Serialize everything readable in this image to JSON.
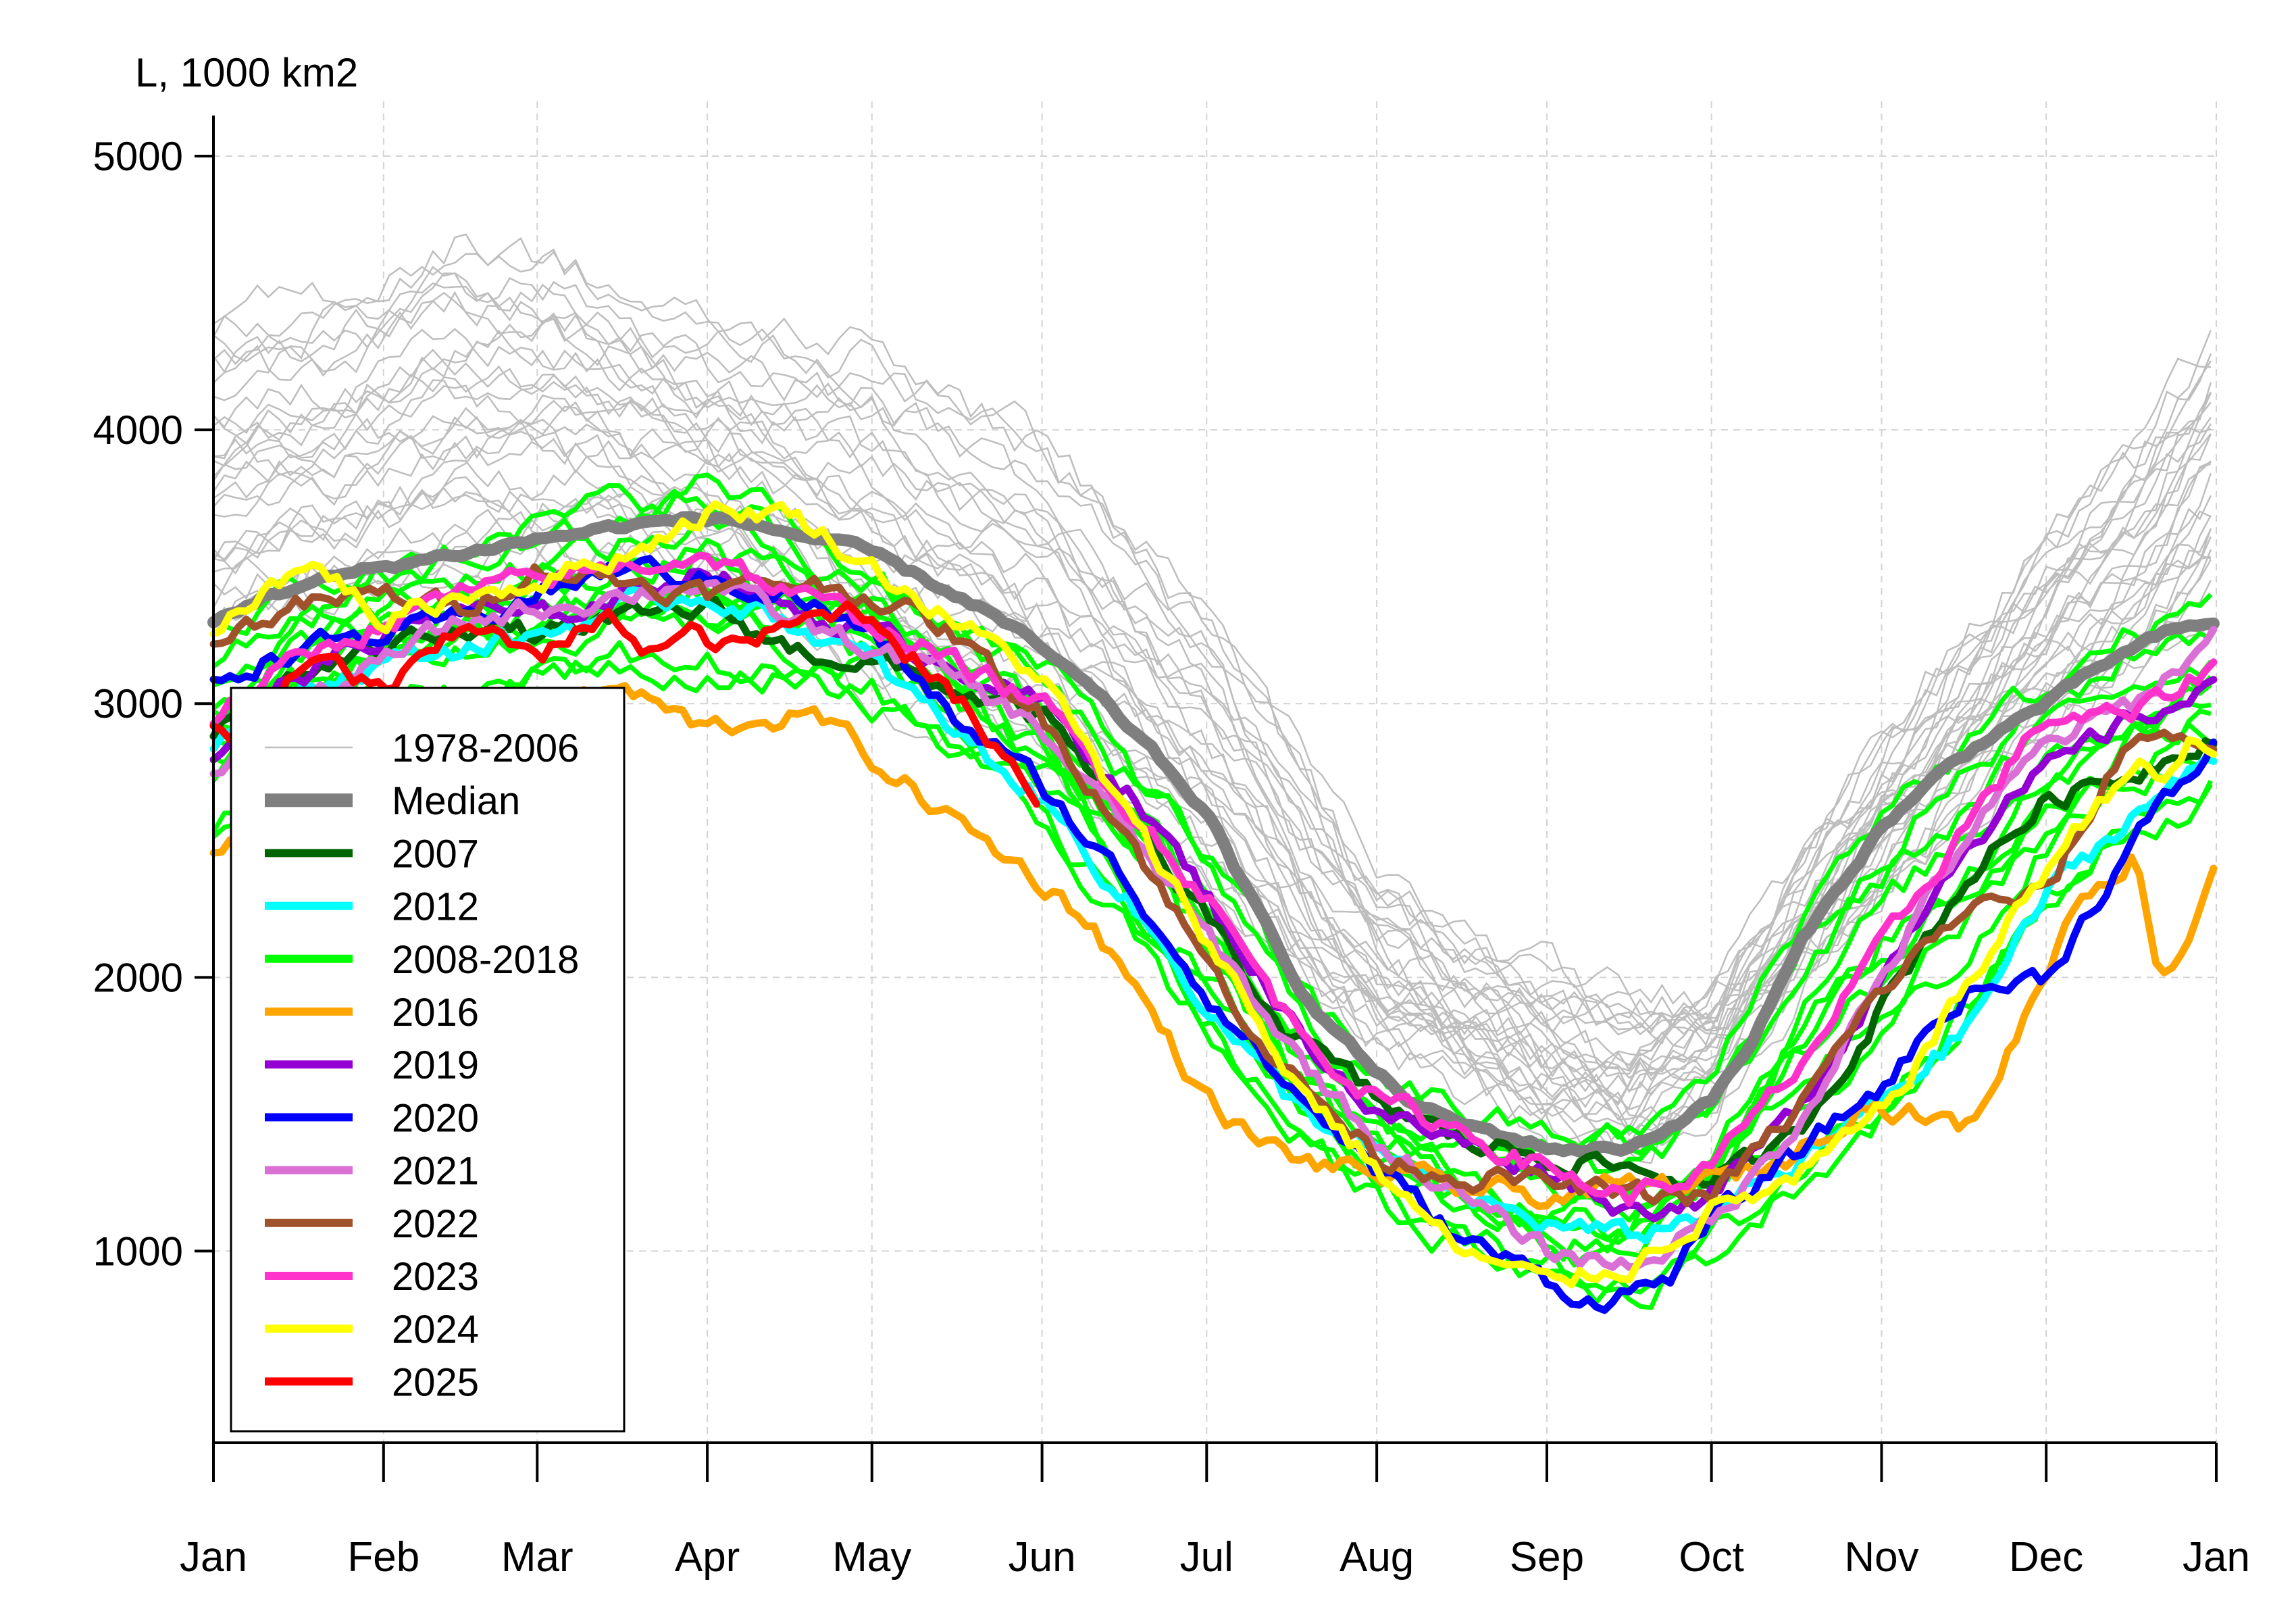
{
  "chart_data": {
    "type": "line",
    "title": "",
    "ylabel": "L, 1000 km2",
    "xlabel": "",
    "ylim": [
      300,
      5200
    ],
    "xlim": [
      0,
      365
    ],
    "grid": true,
    "legend_position": "bottom-left",
    "x_ticks": [
      {
        "label": "Jan",
        "day": 0
      },
      {
        "label": "Feb",
        "day": 31
      },
      {
        "label": "Mar",
        "day": 59
      },
      {
        "label": "Apr",
        "day": 90
      },
      {
        "label": "May",
        "day": 120
      },
      {
        "label": "Jun",
        "day": 151
      },
      {
        "label": "Jul",
        "day": 181
      },
      {
        "label": "Aug",
        "day": 212
      },
      {
        "label": "Sep",
        "day": 243
      },
      {
        "label": "Oct",
        "day": 273
      },
      {
        "label": "Nov",
        "day": 304
      },
      {
        "label": "Dec",
        "day": 334
      },
      {
        "label": "Jan",
        "day": 365
      }
    ],
    "y_ticks": [
      1000,
      2000,
      3000,
      4000,
      5000
    ],
    "legend": [
      {
        "label": "1978-2006",
        "color": "#bebebe",
        "width": "thin"
      },
      {
        "label": "Median",
        "color": "#7f7f7f",
        "width": "thick"
      },
      {
        "label": "2007",
        "color": "#006400",
        "width": "bold"
      },
      {
        "label": "2012",
        "color": "#00ffff",
        "width": "bold"
      },
      {
        "label": "2008-2018",
        "color": "#00ff00",
        "width": "bold"
      },
      {
        "label": "2016",
        "color": "#ffa500",
        "width": "bold"
      },
      {
        "label": "2019",
        "color": "#9400d3",
        "width": "bold"
      },
      {
        "label": "2020",
        "color": "#0000ff",
        "width": "bold"
      },
      {
        "label": "2021",
        "color": "#da70d6",
        "width": "bold"
      },
      {
        "label": "2022",
        "color": "#a0522d",
        "width": "bold"
      },
      {
        "label": "2023",
        "color": "#ff33cc",
        "width": "bold"
      },
      {
        "label": "2024",
        "color": "#ffff00",
        "width": "bold"
      },
      {
        "label": "2025",
        "color": "#ff0000",
        "width": "bold"
      }
    ],
    "envelope_1978_2006": {
      "color": "#bebebe",
      "count": 29,
      "x": [
        0,
        15,
        31,
        45,
        59,
        75,
        90,
        105,
        120,
        135,
        151,
        166,
        181,
        196,
        212,
        227,
        243,
        258,
        273,
        288,
        304,
        319,
        334,
        350,
        365
      ],
      "low": [
        3250,
        3350,
        3400,
        3450,
        3500,
        3500,
        3450,
        3300,
        3000,
        2900,
        2750,
        2550,
        2300,
        2000,
        1750,
        1600,
        1450,
        1380,
        1550,
        1900,
        2300,
        2600,
        2900,
        3100,
        3400
      ],
      "high": [
        4400,
        4450,
        4550,
        4700,
        4650,
        4500,
        4350,
        4350,
        4300,
        4150,
        3950,
        3650,
        3350,
        2850,
        2350,
        2150,
        2000,
        1900,
        1950,
        2400,
        2850,
        3250,
        3600,
        3950,
        4350
      ]
    },
    "series": [
      {
        "name": "Median",
        "color": "#7f7f7f",
        "width": "thick",
        "x": [
          0,
          10,
          20,
          31,
          45,
          59,
          75,
          90,
          100,
          110,
          120,
          130,
          140,
          151,
          160,
          170,
          181,
          190,
          200,
          212,
          220,
          230,
          243,
          250,
          258,
          265,
          273,
          280,
          290,
          304,
          315,
          325,
          334,
          345,
          355,
          365
        ],
        "y": [
          3300,
          3400,
          3450,
          3500,
          3550,
          3600,
          3650,
          3680,
          3650,
          3600,
          3550,
          3450,
          3350,
          3200,
          3050,
          2850,
          2600,
          2250,
          1900,
          1650,
          1520,
          1450,
          1380,
          1370,
          1380,
          1450,
          1550,
          1750,
          2150,
          2550,
          2750,
          2900,
          3000,
          3150,
          3250,
          3300
        ]
      },
      {
        "name": "2007",
        "color": "#006400",
        "width": "bold",
        "x": [
          0,
          15,
          31,
          45,
          59,
          75,
          90,
          105,
          120,
          135,
          151,
          166,
          181,
          196,
          212,
          227,
          243,
          258,
          273,
          288,
          304,
          319,
          334,
          350,
          365
        ],
        "y": [
          2900,
          3100,
          3200,
          3300,
          3250,
          3300,
          3350,
          3200,
          3150,
          3050,
          2950,
          2600,
          2200,
          1800,
          1550,
          1400,
          1350,
          1300,
          1250,
          1400,
          1900,
          2350,
          2650,
          2750,
          2900
        ]
      },
      {
        "name": "2012",
        "color": "#00ffff",
        "width": "bold",
        "x": [
          0,
          15,
          31,
          45,
          59,
          75,
          90,
          105,
          120,
          135,
          151,
          166,
          181,
          196,
          212,
          227,
          243,
          258,
          273,
          288,
          304,
          319,
          334,
          350,
          365
        ],
        "y": [
          2850,
          3050,
          3150,
          3200,
          3250,
          3350,
          3400,
          3300,
          3150,
          2900,
          2650,
          2300,
          1900,
          1550,
          1350,
          1200,
          1100,
          1050,
          1150,
          1300,
          1550,
          1800,
          2300,
          2600,
          2800
        ]
      },
      {
        "name": "2016",
        "color": "#ffa500",
        "width": "bold",
        "x": [
          0,
          10,
          20,
          31,
          45,
          59,
          75,
          90,
          100,
          110,
          120,
          130,
          140,
          151,
          160,
          170,
          181,
          190,
          200,
          212,
          227,
          243,
          258,
          273,
          288,
          300,
          310,
          320,
          330,
          340,
          350,
          355,
          360,
          365
        ],
        "y": [
          2450,
          2600,
          2750,
          2800,
          2900,
          3000,
          3050,
          2900,
          2950,
          2950,
          2800,
          2650,
          2500,
          2350,
          2200,
          1900,
          1550,
          1400,
          1320,
          1280,
          1230,
          1200,
          1230,
          1250,
          1350,
          1550,
          1500,
          1450,
          1850,
          2300,
          2450,
          2000,
          2150,
          2450
        ]
      },
      {
        "name": "2019",
        "color": "#9400d3",
        "width": "bold",
        "x": [
          0,
          15,
          31,
          45,
          59,
          75,
          90,
          105,
          120,
          135,
          151,
          166,
          181,
          196,
          212,
          227,
          243,
          258,
          273,
          288,
          304,
          319,
          334,
          350,
          365
        ],
        "y": [
          2800,
          3100,
          3250,
          3350,
          3300,
          3400,
          3500,
          3350,
          3250,
          3150,
          3000,
          2700,
          2300,
          1850,
          1500,
          1400,
          1300,
          1150,
          1200,
          1500,
          2000,
          2500,
          2750,
          2950,
          3050
        ]
      },
      {
        "name": "2020",
        "color": "#0000ff",
        "width": "bold",
        "x": [
          0,
          15,
          31,
          45,
          59,
          75,
          90,
          105,
          120,
          135,
          151,
          166,
          181,
          196,
          212,
          227,
          243,
          250,
          258,
          265,
          273,
          288,
          304,
          319,
          334,
          350,
          365
        ],
        "y": [
          3100,
          3200,
          3250,
          3300,
          3400,
          3500,
          3450,
          3400,
          3250,
          2950,
          2700,
          2350,
          1950,
          1600,
          1300,
          1050,
          900,
          820,
          850,
          900,
          1100,
          1350,
          1600,
          1950,
          2000,
          2500,
          2850
        ]
      },
      {
        "name": "2021",
        "color": "#da70d6",
        "width": "bold",
        "x": [
          0,
          15,
          31,
          45,
          59,
          75,
          90,
          105,
          120,
          135,
          151,
          166,
          181,
          196,
          212,
          227,
          243,
          258,
          273,
          288,
          304,
          319,
          334,
          350,
          365
        ],
        "y": [
          2750,
          3000,
          3150,
          3300,
          3350,
          3400,
          3450,
          3300,
          3200,
          3100,
          2900,
          2550,
          2150,
          1750,
          1400,
          1200,
          1000,
          950,
          1100,
          1450,
          2000,
          2500,
          2850,
          3000,
          3250
        ]
      },
      {
        "name": "2022",
        "color": "#a0522d",
        "width": "bold",
        "x": [
          0,
          15,
          31,
          45,
          59,
          75,
          90,
          105,
          120,
          135,
          151,
          166,
          181,
          196,
          212,
          227,
          243,
          258,
          273,
          288,
          304,
          319,
          334,
          350,
          365
        ],
        "y": [
          3250,
          3350,
          3400,
          3350,
          3500,
          3450,
          3400,
          3450,
          3400,
          3250,
          2950,
          2550,
          2050,
          1650,
          1350,
          1280,
          1250,
          1200,
          1200,
          1500,
          1950,
          2250,
          2300,
          2900,
          2850
        ]
      },
      {
        "name": "2023",
        "color": "#ff33cc",
        "width": "bold",
        "x": [
          0,
          15,
          31,
          45,
          59,
          75,
          90,
          105,
          120,
          135,
          151,
          166,
          181,
          196,
          212,
          227,
          243,
          258,
          273,
          288,
          304,
          319,
          334,
          350,
          365
        ],
        "y": [
          2950,
          3150,
          3300,
          3400,
          3450,
          3500,
          3550,
          3400,
          3300,
          3150,
          3000,
          2650,
          2300,
          1850,
          1550,
          1450,
          1300,
          1200,
          1300,
          1650,
          2100,
          2550,
          2950,
          2950,
          3150
        ]
      },
      {
        "name": "2024",
        "color": "#ffff00",
        "width": "bold",
        "x": [
          0,
          10,
          20,
          31,
          45,
          59,
          75,
          90,
          105,
          120,
          135,
          151,
          166,
          181,
          196,
          212,
          227,
          243,
          258,
          273,
          288,
          304,
          319,
          334,
          350,
          355,
          360,
          365
        ],
        "y": [
          3250,
          3450,
          3500,
          3300,
          3400,
          3450,
          3550,
          3700,
          3700,
          3500,
          3300,
          3100,
          2600,
          2150,
          1650,
          1300,
          1000,
          880,
          950,
          1150,
          1250,
          1500,
          1950,
          2400,
          2800,
          2700,
          2850,
          2800
        ]
      },
      {
        "name": "2025",
        "color": "#ff0000",
        "width": "bold",
        "x": [
          0,
          5,
          10,
          15,
          20,
          25,
          31,
          38,
          45,
          52,
          59,
          66,
          73,
          80,
          87,
          94,
          101,
          108,
          115,
          122,
          129,
          136,
          143,
          151
        ],
        "y": [
          2900,
          2850,
          3000,
          3100,
          3150,
          3100,
          3050,
          3150,
          3250,
          3300,
          3150,
          3250,
          3300,
          3200,
          3250,
          3200,
          3250,
          3300,
          3350,
          3300,
          3150,
          3000,
          2850,
          2650
        ]
      }
    ],
    "band_2008_2018": {
      "color": "#00ff00",
      "count": 11,
      "x": [
        0,
        15,
        31,
        45,
        59,
        75,
        90,
        105,
        120,
        135,
        151,
        166,
        181,
        196,
        212,
        227,
        243,
        258,
        273,
        288,
        304,
        319,
        334,
        350,
        365
      ],
      "low": [
        2500,
        2800,
        2950,
        3000,
        3050,
        3100,
        3100,
        3050,
        3000,
        2800,
        2550,
        2150,
        1750,
        1400,
        1150,
        1000,
        880,
        800,
        950,
        1200,
        1450,
        1800,
        2250,
        2500,
        2650
      ],
      "high": [
        3300,
        3450,
        3550,
        3650,
        3700,
        3750,
        3850,
        3700,
        3500,
        3350,
        3150,
        2850,
        2500,
        2000,
        1700,
        1550,
        1450,
        1450,
        1650,
        2250,
        2700,
        2900,
        3100,
        3300,
        3400
      ]
    }
  }
}
